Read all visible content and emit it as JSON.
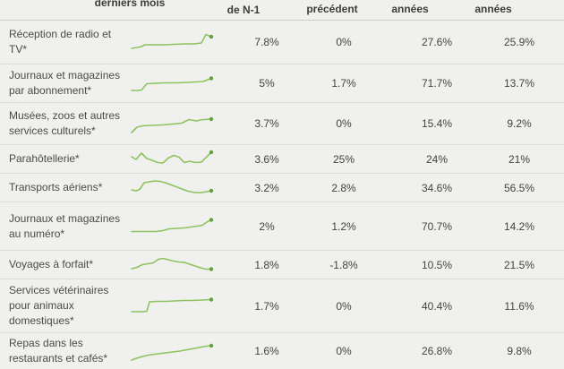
{
  "chart_data": {
    "type": "table",
    "columns": [
      {
        "id": "label",
        "label": ""
      },
      {
        "id": "sparkline",
        "label": "derniers mois"
      },
      {
        "id": "col1",
        "label": "de N-1"
      },
      {
        "id": "col2",
        "label": "précédent"
      },
      {
        "id": "col3",
        "label": "années"
      },
      {
        "id": "col4",
        "label": "années"
      }
    ],
    "colors": {
      "spark_line": "#8ec35e",
      "spark_dot": "#5fa23a",
      "background": "#f0f0ee"
    },
    "rows": [
      {
        "label": "Réception de radio et TV*",
        "values": [
          "7.8%",
          "0%",
          "27.6%",
          "25.9%"
        ],
        "sparkline": [
          [
            2,
            19
          ],
          [
            8,
            18
          ],
          [
            13,
            17
          ],
          [
            17,
            15
          ],
          [
            26,
            15
          ],
          [
            38,
            15
          ],
          [
            50,
            14.5
          ],
          [
            62,
            14
          ],
          [
            72,
            14
          ],
          [
            80,
            13
          ],
          [
            85,
            3.5
          ],
          [
            91,
            6
          ]
        ]
      },
      {
        "label": "Journaux et magazines par abonnement*",
        "values": [
          "5%",
          "1.7%",
          "71.7%",
          "13.7%"
        ],
        "sparkline": [
          [
            2,
            20
          ],
          [
            9,
            20
          ],
          [
            13,
            19.5
          ],
          [
            19,
            12.5
          ],
          [
            28,
            12
          ],
          [
            40,
            11.5
          ],
          [
            52,
            11.5
          ],
          [
            64,
            11
          ],
          [
            74,
            10.5
          ],
          [
            82,
            10
          ],
          [
            91,
            6.5
          ]
        ]
      },
      {
        "label": "Musées, zoos et autres services culturels*",
        "values": [
          "3.7%",
          "0%",
          "15.4%",
          "9.2%"
        ],
        "sparkline": [
          [
            2,
            22
          ],
          [
            8,
            16
          ],
          [
            14,
            14.5
          ],
          [
            24,
            14
          ],
          [
            36,
            13.5
          ],
          [
            48,
            12.5
          ],
          [
            58,
            11.5
          ],
          [
            66,
            7.5
          ],
          [
            74,
            9
          ],
          [
            82,
            7.5
          ],
          [
            91,
            7
          ]
        ]
      },
      {
        "label": "Parahôtellerie*",
        "values": [
          "3.6%",
          "25%",
          "24%",
          "21%"
        ],
        "sparkline": [
          [
            2,
            9
          ],
          [
            7,
            12
          ],
          [
            13,
            5
          ],
          [
            19,
            11
          ],
          [
            25,
            13
          ],
          [
            31,
            15.5
          ],
          [
            37,
            16
          ],
          [
            43,
            10.5
          ],
          [
            49,
            7.5
          ],
          [
            55,
            9.5
          ],
          [
            61,
            15.5
          ],
          [
            67,
            14
          ],
          [
            73,
            15.5
          ],
          [
            80,
            15
          ],
          [
            91,
            4
          ]
        ]
      },
      {
        "label": "Transports aériens*",
        "values": [
          "3.2%",
          "2.8%",
          "34.6%",
          "56.5%"
        ],
        "sparkline": [
          [
            2,
            14
          ],
          [
            7,
            15
          ],
          [
            11,
            13.5
          ],
          [
            16,
            6
          ],
          [
            22,
            5
          ],
          [
            28,
            4
          ],
          [
            34,
            4.5
          ],
          [
            41,
            6.5
          ],
          [
            49,
            9.5
          ],
          [
            57,
            12.5
          ],
          [
            65,
            15.5
          ],
          [
            73,
            17
          ],
          [
            80,
            17
          ],
          [
            86,
            16
          ],
          [
            91,
            15
          ]
        ]
      },
      {
        "label": "Journaux et magazines au numéro*",
        "values": [
          "2%",
          "1.2%",
          "70.7%",
          "14.2%"
        ],
        "sparkline": [
          [
            2,
            17.5
          ],
          [
            11,
            17.5
          ],
          [
            20,
            17.5
          ],
          [
            29,
            17.5
          ],
          [
            37,
            16.5
          ],
          [
            44,
            14.5
          ],
          [
            52,
            14
          ],
          [
            60,
            13.5
          ],
          [
            68,
            12.5
          ],
          [
            75,
            11.5
          ],
          [
            81,
            10.5
          ],
          [
            86,
            7
          ],
          [
            91,
            4.5
          ]
        ]
      },
      {
        "label": "Voyages à forfait*",
        "values": [
          "1.8%",
          "-1.8%",
          "10.5%",
          "21.5%"
        ],
        "sparkline": [
          [
            2,
            16
          ],
          [
            8,
            14.5
          ],
          [
            14,
            11.5
          ],
          [
            20,
            10.5
          ],
          [
            26,
            9.5
          ],
          [
            32,
            5.5
          ],
          [
            37,
            4.5
          ],
          [
            43,
            6
          ],
          [
            49,
            7.5
          ],
          [
            55,
            8.5
          ],
          [
            61,
            9
          ],
          [
            67,
            11
          ],
          [
            73,
            13
          ],
          [
            79,
            15
          ],
          [
            85,
            16.5
          ],
          [
            91,
            16.5
          ]
        ]
      },
      {
        "label": "Services vétérinaires pour animaux domestiques*",
        "values": [
          "1.7%",
          "0%",
          "40.4%",
          "11.6%"
        ],
        "sparkline": [
          [
            2,
            18
          ],
          [
            9,
            18
          ],
          [
            15,
            18
          ],
          [
            19,
            17.5
          ],
          [
            22,
            7
          ],
          [
            30,
            6.5
          ],
          [
            40,
            6.5
          ],
          [
            50,
            6
          ],
          [
            60,
            5.5
          ],
          [
            70,
            5.5
          ],
          [
            80,
            5
          ],
          [
            91,
            4.5
          ]
        ]
      },
      {
        "label": "Repas dans les restaurants et cafés*",
        "values": [
          "1.6%",
          "0%",
          "26.8%",
          "9.8%"
        ],
        "sparkline": [
          [
            2,
            22
          ],
          [
            9,
            19.5
          ],
          [
            16,
            17.5
          ],
          [
            24,
            16
          ],
          [
            32,
            15
          ],
          [
            40,
            14
          ],
          [
            48,
            13
          ],
          [
            56,
            12
          ],
          [
            64,
            10.5
          ],
          [
            72,
            9
          ],
          [
            80,
            7.5
          ],
          [
            86,
            6.5
          ],
          [
            91,
            6
          ]
        ]
      }
    ]
  }
}
